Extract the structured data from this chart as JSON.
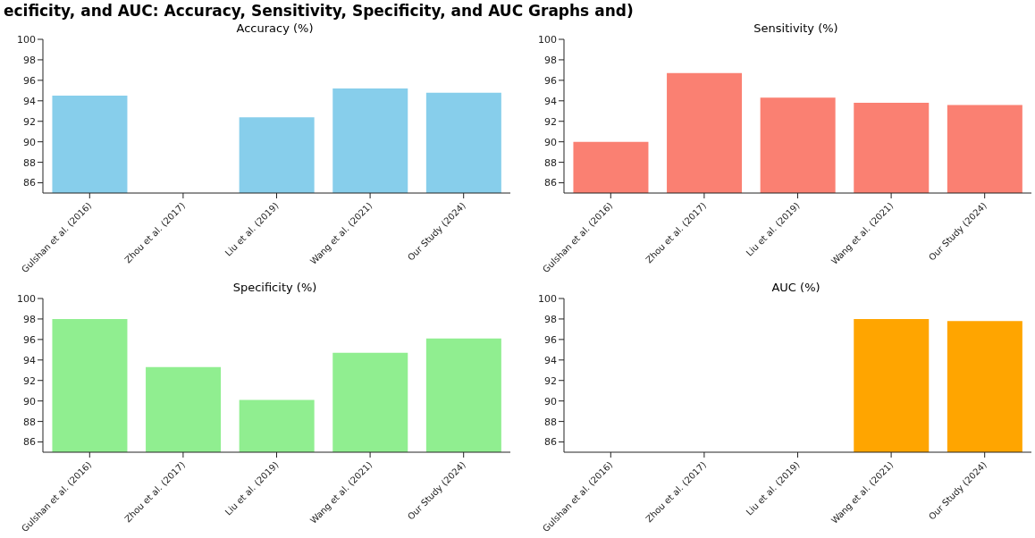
{
  "chart_data": [
    {
      "type": "bar",
      "title": "Accuracy (%)",
      "annotations": [
        "ecificity, and AUC: Accuracy, Sensitivity, Specificity, and AUC Graphs and)"
      ],
      "categories": [
        "Gulshan et al. (2016)",
        "Zhou et al. (2017)",
        "Liu et al. (2019)",
        "Wang et al. (2021)",
        "Our Study (2024)"
      ],
      "values": [
        94.5,
        null,
        92.4,
        95.2,
        94.8
      ],
      "color": "#87ceeb",
      "ylim": [
        85,
        100
      ],
      "yticks": [
        86,
        88,
        90,
        92,
        94,
        96,
        98,
        100
      ]
    },
    {
      "type": "bar",
      "title": "Sensitivity (%)",
      "categories": [
        "Gulshan et al. (2016)",
        "Zhou et al. (2017)",
        "Liu et al. (2019)",
        "Wang et al. (2021)",
        "Our Study (2024)"
      ],
      "values": [
        90.0,
        96.7,
        94.3,
        93.8,
        93.6
      ],
      "color": "#fa8072",
      "ylim": [
        85,
        100
      ],
      "yticks": [
        86,
        88,
        90,
        92,
        94,
        96,
        98,
        100
      ]
    },
    {
      "type": "bar",
      "title": "Specificity (%)",
      "categories": [
        "Gulshan et al. (2016)",
        "Zhou et al. (2017)",
        "Liu et al. (2019)",
        "Wang et al. (2021)",
        "Our Study (2024)"
      ],
      "values": [
        98.0,
        93.3,
        90.1,
        94.7,
        96.1
      ],
      "color": "#90ee90",
      "ylim": [
        85,
        100
      ],
      "yticks": [
        86,
        88,
        90,
        92,
        94,
        96,
        98,
        100
      ]
    },
    {
      "type": "bar",
      "title": "AUC (%)",
      "categories": [
        "Gulshan et al. (2016)",
        "Zhou et al. (2017)",
        "Liu et al. (2019)",
        "Wang et al. (2021)",
        "Our Study (2024)"
      ],
      "values": [
        null,
        null,
        null,
        98.0,
        97.8
      ],
      "color": "#ffa500",
      "ylim": [
        85,
        100
      ],
      "yticks": [
        86,
        88,
        90,
        92,
        94,
        96,
        98,
        100
      ]
    }
  ]
}
